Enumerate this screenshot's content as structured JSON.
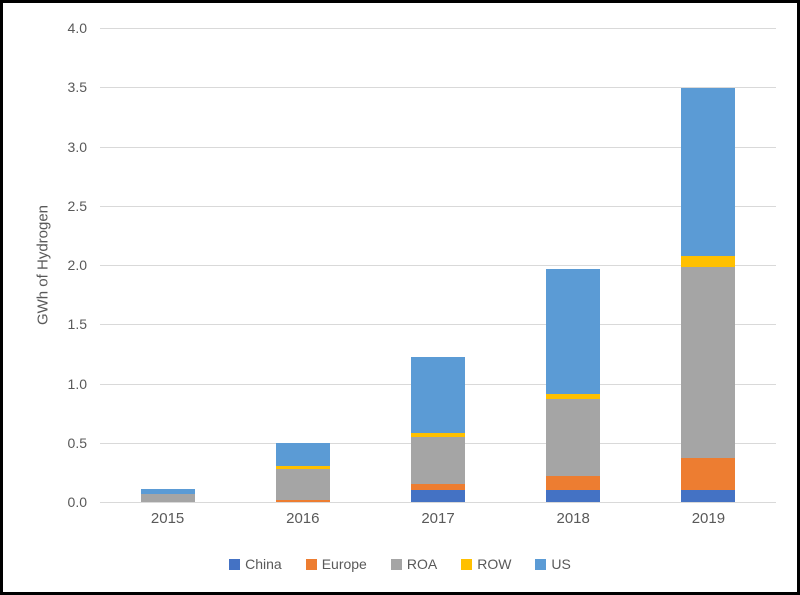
{
  "chart_data": {
    "type": "bar",
    "stacked": true,
    "title": "",
    "xlabel": "",
    "ylabel": "GWh of Hydrogen",
    "categories": [
      "2015",
      "2016",
      "2017",
      "2018",
      "2019"
    ],
    "series": [
      {
        "name": "China",
        "color": "#4472C4",
        "values": [
          0,
          0,
          0.1,
          0.1,
          0.1
        ]
      },
      {
        "name": "Europe",
        "color": "#ED7D31",
        "values": [
          0,
          0.02,
          0.05,
          0.12,
          0.27
        ]
      },
      {
        "name": "ROA",
        "color": "#A5A5A5",
        "values": [
          0.07,
          0.26,
          0.4,
          0.65,
          1.61
        ]
      },
      {
        "name": "ROW",
        "color": "#FFC000",
        "values": [
          0,
          0.02,
          0.03,
          0.04,
          0.1
        ]
      },
      {
        "name": "US",
        "color": "#5B9BD5",
        "values": [
          0.04,
          0.2,
          0.64,
          1.06,
          1.41
        ]
      }
    ],
    "totals": [
      0.11,
      0.5,
      1.22,
      1.97,
      3.49
    ],
    "ylim": [
      0,
      4.0
    ],
    "ytick_step": 0.5,
    "ytick_labels": [
      "0.0",
      "0.5",
      "1.0",
      "1.5",
      "2.0",
      "2.5",
      "3.0",
      "3.5",
      "4.0"
    ],
    "grid": true,
    "legend_position": "bottom",
    "colors": {
      "gridline": "#d9d9d9",
      "axis_line": "#d9d9d9",
      "text": "#595959",
      "frame_border": "#000000",
      "background": "#ffffff"
    }
  }
}
